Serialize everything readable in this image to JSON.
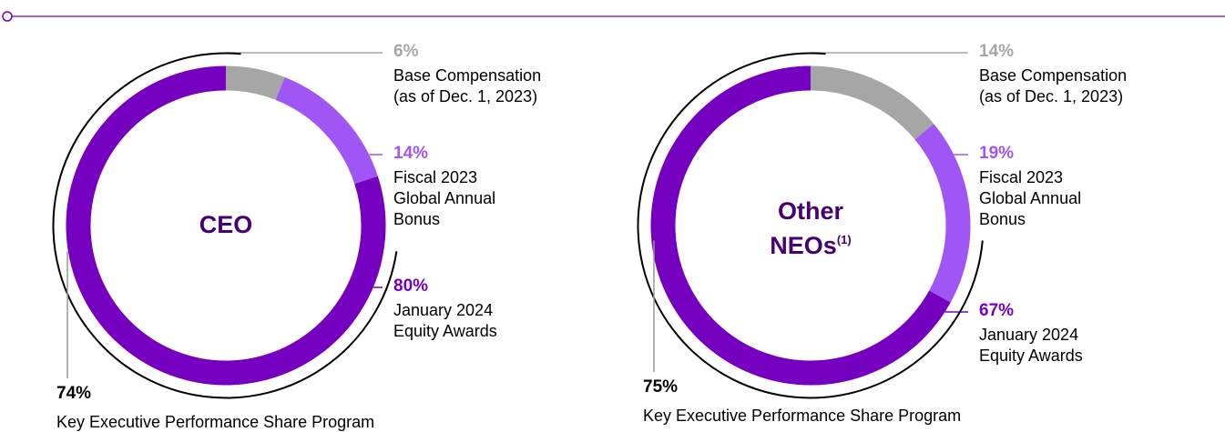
{
  "chart_data": [
    {
      "type": "pie",
      "center_label": "CEO",
      "categories": [
        "Base Compensation\n(as of Dec. 1, 2023)",
        "Fiscal 2023\nGlobal Annual\nBonus",
        "January 2024\nEquity Awards"
      ],
      "values": [
        6,
        14,
        80
      ],
      "value_labels": [
        "6%",
        "14%",
        "80%"
      ],
      "colors": [
        "#a6a6a6",
        "#a055f5",
        "#7500c0"
      ],
      "annotation": {
        "value": 74,
        "label": "74%",
        "text": "Key Executive Performance Share Program"
      }
    },
    {
      "type": "pie",
      "center_label": "Other\nNEOs",
      "center_note": "(1)",
      "categories": [
        "Base Compensation\n(as of Dec. 1, 2023)",
        "Fiscal 2023\nGlobal Annual\nBonus",
        "January 2024\nEquity Awards"
      ],
      "values": [
        14,
        19,
        67
      ],
      "value_labels": [
        "14%",
        "19%",
        "67%"
      ],
      "colors": [
        "#a6a6a6",
        "#a055f5",
        "#7500c0"
      ],
      "annotation": {
        "value": 75,
        "label": "75%",
        "text": "Key Executive Performance Share Program"
      }
    }
  ]
}
